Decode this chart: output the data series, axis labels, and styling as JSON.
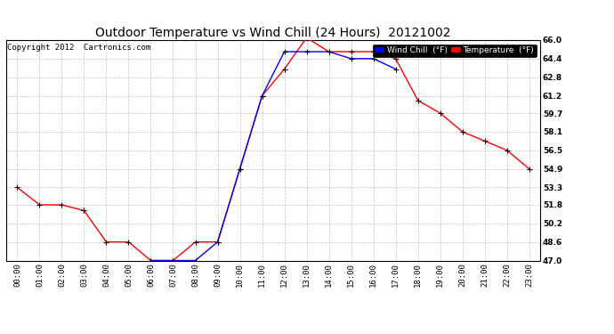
{
  "title": "Outdoor Temperature vs Wind Chill (24 Hours)  20121002",
  "copyright": "Copyright 2012  Cartronics.com",
  "legend_wind_chill": "Wind Chill  (°F)",
  "legend_temperature": "Temperature  (°F)",
  "x_labels": [
    "00:00",
    "01:00",
    "02:00",
    "03:00",
    "04:00",
    "05:00",
    "06:00",
    "07:00",
    "08:00",
    "09:00",
    "10:00",
    "11:00",
    "12:00",
    "13:00",
    "14:00",
    "15:00",
    "16:00",
    "17:00",
    "18:00",
    "19:00",
    "20:00",
    "21:00",
    "22:00",
    "23:00"
  ],
  "temperature": [
    53.3,
    51.8,
    51.8,
    51.3,
    48.6,
    48.6,
    47.0,
    47.0,
    48.6,
    48.6,
    54.9,
    61.2,
    63.5,
    66.2,
    65.0,
    65.0,
    65.0,
    64.4,
    60.8,
    59.7,
    58.1,
    57.3,
    56.5,
    54.9
  ],
  "wind_chill": [
    null,
    null,
    null,
    null,
    null,
    null,
    47.0,
    47.0,
    47.0,
    48.6,
    54.9,
    61.2,
    65.0,
    65.0,
    65.0,
    64.4,
    64.4,
    63.5,
    null,
    null,
    null,
    null,
    null,
    null
  ],
  "ylim_min": 47.0,
  "ylim_max": 66.0,
  "yticks": [
    47.0,
    48.6,
    50.2,
    51.8,
    53.3,
    54.9,
    56.5,
    58.1,
    59.7,
    61.2,
    62.8,
    64.4,
    66.0
  ],
  "temp_color": "#ff0000",
  "wind_chill_color": "#0000ff",
  "marker_color": "#000000",
  "bg_color": "#ffffff",
  "grid_color": "#bbbbbb",
  "title_fontsize": 10,
  "copyright_fontsize": 6.5,
  "tick_fontsize": 6.5,
  "legend_fontsize": 6.5,
  "fig_width": 6.9,
  "fig_height": 3.75,
  "dpi": 100
}
